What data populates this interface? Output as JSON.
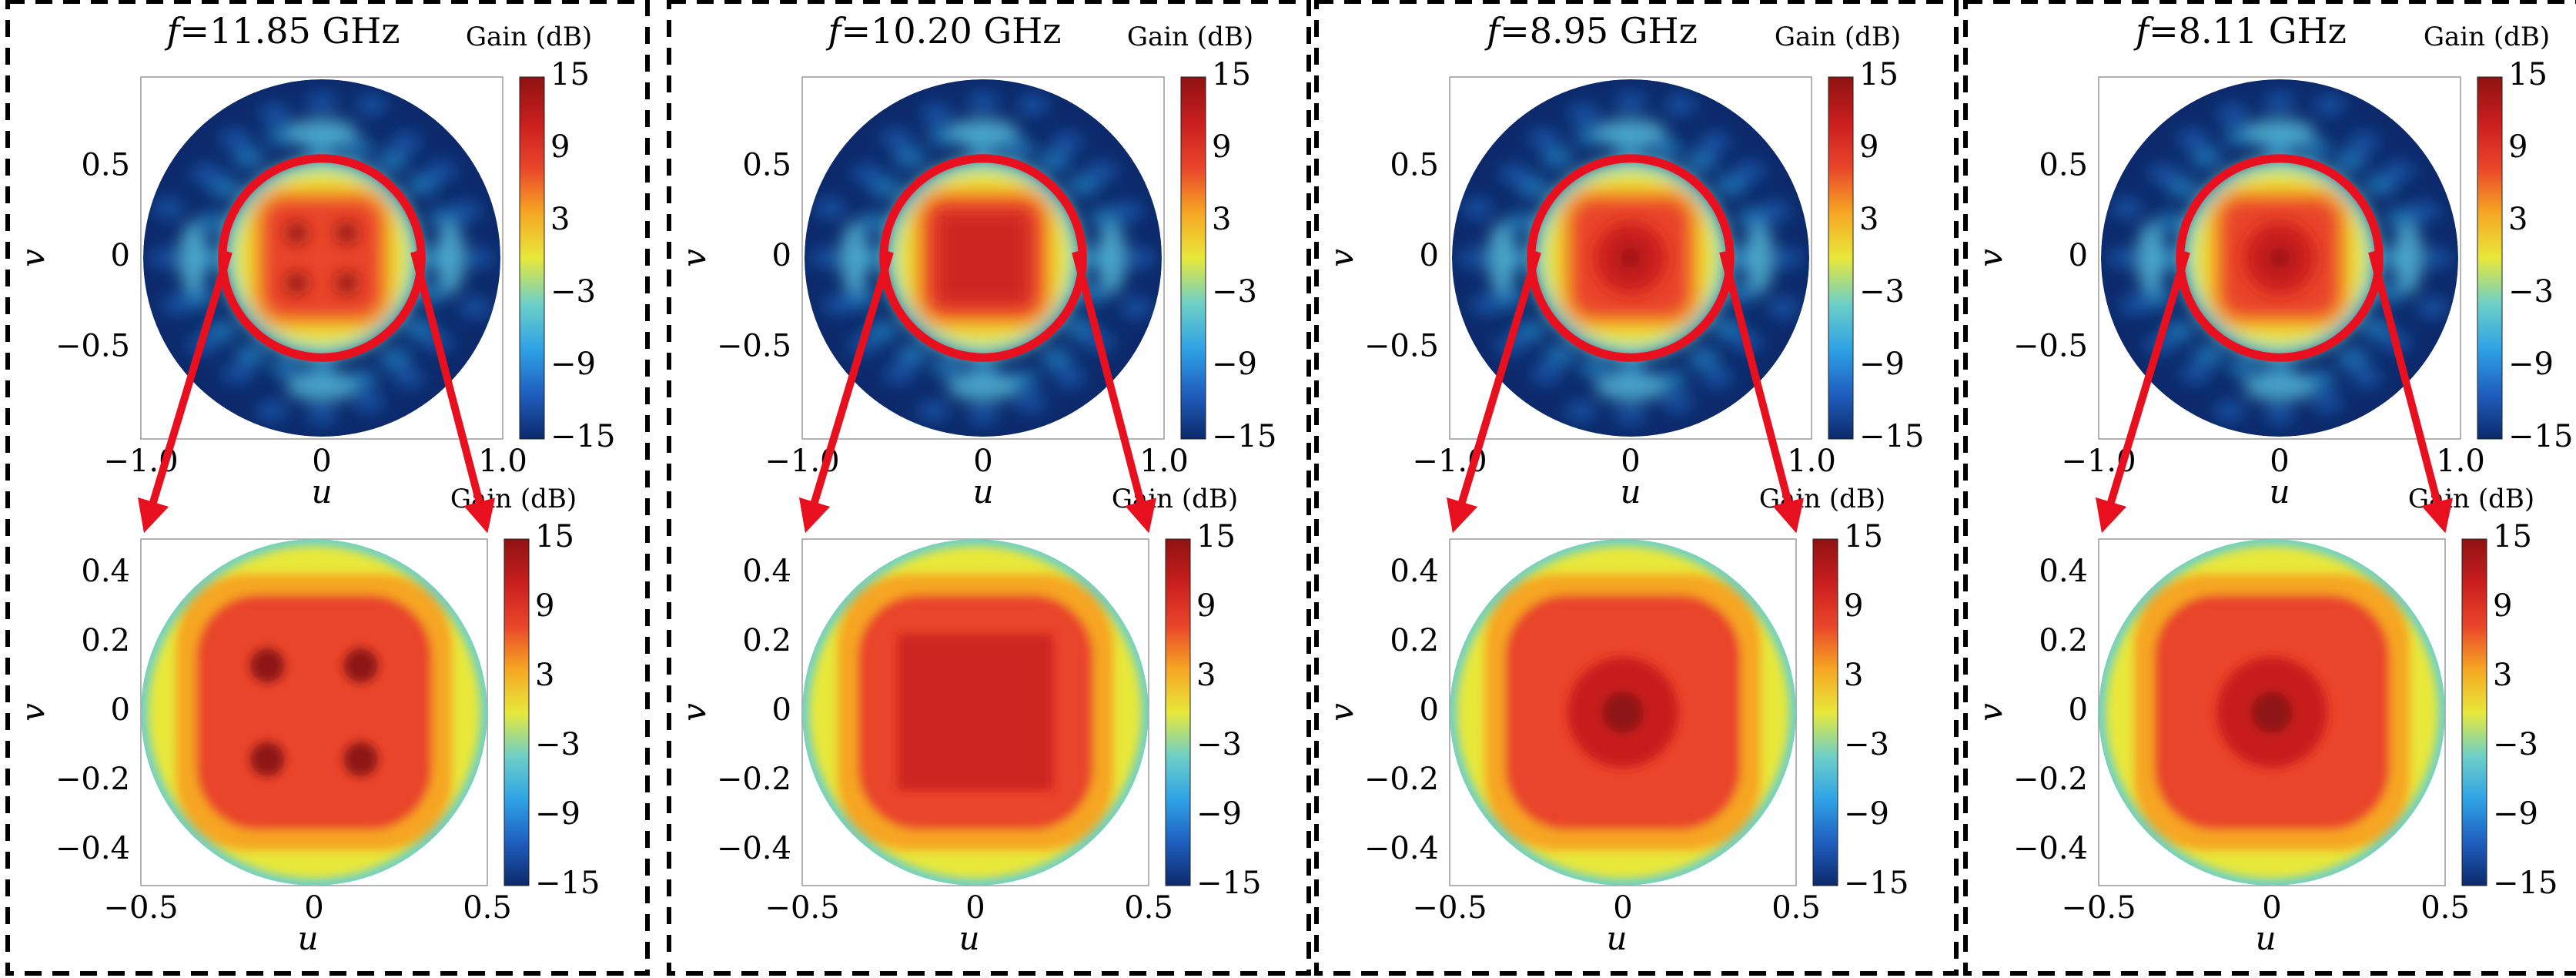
{
  "figure": {
    "colorbar_label": "Gain (dB)",
    "colormap": [
      "#0c2a6b",
      "#1f5fbf",
      "#2fa3e6",
      "#6fd0c6",
      "#e8e83a",
      "#f6a623",
      "#e9452a",
      "#c81e1e",
      "#8f1212"
    ],
    "highlight_color": "#e8101e",
    "frame_style": "dashed black border around each panel"
  },
  "chart_data": [
    {
      "type": "heatmap",
      "panel": 1,
      "title_symbol": "f",
      "title_value": "=11.85 GHz",
      "colorbar_ticks": [
        "15",
        "9",
        "3",
        "−3",
        "−9",
        "−15"
      ],
      "colorbar_range": [
        -15,
        15
      ],
      "full_view": {
        "xlabel": "u",
        "ylabel": "v",
        "xlim": [
          -1.0,
          1.0
        ],
        "ylim": [
          -1.0,
          1.0
        ],
        "xticks": [
          "−1.0",
          "0",
          "1.0"
        ],
        "yticks": [
          "0.5",
          "0",
          "−0.5"
        ],
        "zoom_circle_radius": 0.55
      },
      "zoom_view": {
        "xlabel": "u",
        "ylabel": "v",
        "xlim": [
          -0.5,
          0.5
        ],
        "ylim": [
          -0.5,
          0.5
        ],
        "xticks": [
          "−0.5",
          "0",
          "0.5"
        ],
        "yticks": [
          "0.4",
          "0.2",
          "0",
          "−0.2",
          "−0.4"
        ]
      },
      "pattern": "four-lobe main beam (peaks near u,v = ±0.13)",
      "peak_gain_db": 15
    },
    {
      "type": "heatmap",
      "panel": 2,
      "title_symbol": "f",
      "title_value": "=10.20 GHz",
      "colorbar_ticks": [
        "15",
        "9",
        "3",
        "−3",
        "−9",
        "−15"
      ],
      "colorbar_range": [
        -15,
        15
      ],
      "full_view": {
        "xlabel": "u",
        "ylabel": "v",
        "xlim": [
          -1.0,
          1.0
        ],
        "ylim": [
          -1.0,
          1.0
        ],
        "xticks": [
          "−1.0",
          "0",
          "1.0"
        ],
        "yticks": [
          "0.5",
          "0",
          "−0.5"
        ],
        "zoom_circle_radius": 0.55
      },
      "zoom_view": {
        "xlabel": "u",
        "ylabel": "v",
        "xlim": [
          -0.5,
          0.5
        ],
        "ylim": [
          -0.5,
          0.5
        ],
        "xticks": [
          "−0.5",
          "0",
          "0.5"
        ],
        "yticks": [
          "0.4",
          "0.2",
          "0",
          "−0.2",
          "−0.4"
        ]
      },
      "pattern": "square flat-top main beam",
      "peak_gain_db": 13
    },
    {
      "type": "heatmap",
      "panel": 3,
      "title_symbol": "f",
      "title_value": "=8.95 GHz",
      "colorbar_ticks": [
        "15",
        "9",
        "3",
        "−3",
        "−9",
        "−15"
      ],
      "colorbar_range": [
        -15,
        15
      ],
      "full_view": {
        "xlabel": "u",
        "ylabel": "v",
        "xlim": [
          -1.0,
          1.0
        ],
        "ylim": [
          -1.0,
          1.0
        ],
        "xticks": [
          "−1.0",
          "0",
          "1.0"
        ],
        "yticks": [
          "0.5",
          "0",
          "−0.5"
        ],
        "zoom_circle_radius": 0.55
      },
      "zoom_view": {
        "xlabel": "u",
        "ylabel": "v",
        "xlim": [
          -0.5,
          0.5
        ],
        "ylim": [
          -0.5,
          0.5
        ],
        "xticks": [
          "−0.5",
          "0",
          "0.5"
        ],
        "yticks": [
          "0.4",
          "0.2",
          "0",
          "−0.2",
          "−0.4"
        ]
      },
      "pattern": "single central main beam",
      "peak_gain_db": 14
    },
    {
      "type": "heatmap",
      "panel": 4,
      "title_symbol": "f",
      "title_value": "=8.11 GHz",
      "colorbar_ticks": [
        "15",
        "9",
        "3",
        "−3",
        "−9",
        "−15"
      ],
      "colorbar_range": [
        -15,
        15
      ],
      "full_view": {
        "xlabel": "u",
        "ylabel": "v",
        "xlim": [
          -1.0,
          1.0
        ],
        "ylim": [
          -1.0,
          1.0
        ],
        "xticks": [
          "−1.0",
          "0",
          "1.0"
        ],
        "yticks": [
          "0.5",
          "0",
          "−0.5"
        ],
        "zoom_circle_radius": 0.55
      },
      "zoom_view": {
        "xlabel": "u",
        "ylabel": "v",
        "xlim": [
          -0.5,
          0.5
        ],
        "ylim": [
          -0.5,
          0.5
        ],
        "xticks": [
          "−0.5",
          "0",
          "0.5"
        ],
        "yticks": [
          "0.4",
          "0.2",
          "0",
          "−0.2",
          "−0.4"
        ]
      },
      "pattern": "single central main beam",
      "peak_gain_db": 14.5
    }
  ]
}
